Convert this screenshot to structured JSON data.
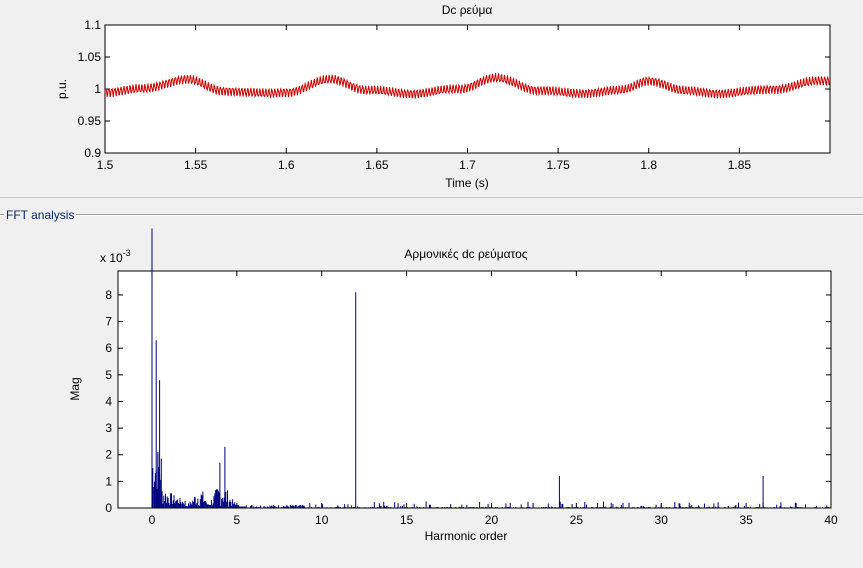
{
  "panel": {
    "title": "FFT analysis"
  },
  "chart_data": [
    {
      "type": "line",
      "title": "Dc ρεύμα",
      "xlabel": "Time (s)",
      "ylabel": "p.u.",
      "xlim": [
        1.5,
        1.9
      ],
      "ylim": [
        0.9,
        1.1
      ],
      "xticks": [
        "1.5",
        "1.55",
        "1.6",
        "1.65",
        "1.7",
        "1.75",
        "1.8",
        "1.85"
      ],
      "yticks": [
        "0.9",
        "0.95",
        "1",
        "1.05",
        "1.1"
      ],
      "color": "#cc0000",
      "series": [
        {
          "description": "ripple around 1.0 p.u.",
          "x": [
            1.5,
            1.52,
            1.545,
            1.565,
            1.59,
            1.6,
            1.625,
            1.645,
            1.67,
            1.695,
            1.715,
            1.74,
            1.76,
            1.785,
            1.8,
            1.82,
            1.84,
            1.87,
            1.895
          ],
          "y": [
            0.995,
            1.0,
            1.015,
            0.997,
            0.993,
            0.995,
            1.015,
            0.998,
            0.993,
            1.0,
            1.017,
            0.998,
            0.993,
            0.998,
            1.013,
            0.997,
            0.993,
            1.0,
            1.013
          ]
        }
      ]
    },
    {
      "type": "bar",
      "title": "Αρμονικές dc ρεύματος",
      "xlabel": "Harmonic order",
      "ylabel": "Mag",
      "scale_label": "x 10",
      "scale_exp": "-3",
      "xlim": [
        -2,
        40
      ],
      "ylim": [
        0,
        8.9
      ],
      "xticks": [
        "0",
        "5",
        "10",
        "15",
        "20",
        "25",
        "30",
        "35",
        "40"
      ],
      "yticks": [
        "0",
        "1",
        "2",
        "3",
        "4",
        "5",
        "6",
        "7",
        "8"
      ],
      "color": "#000080",
      "peaks": [
        {
          "x": 0.0,
          "y": 10.5
        },
        {
          "x": 0.25,
          "y": 6.3
        },
        {
          "x": 0.45,
          "y": 4.8
        },
        {
          "x": 0.35,
          "y": 2.1
        },
        {
          "x": 4.3,
          "y": 2.3
        },
        {
          "x": 4.0,
          "y": 1.7
        },
        {
          "x": 12.0,
          "y": 8.1
        },
        {
          "x": 24.0,
          "y": 1.2
        },
        {
          "x": 36.0,
          "y": 1.2
        }
      ]
    }
  ]
}
